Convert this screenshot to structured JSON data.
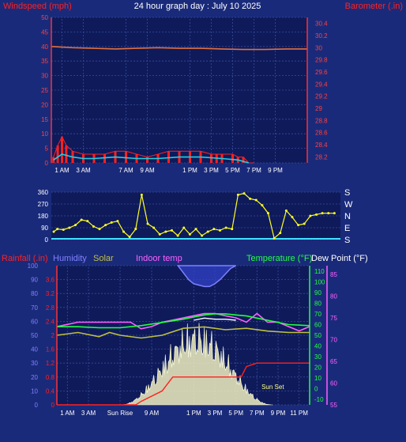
{
  "header": {
    "left_label": "Windspeed (mph)",
    "title": "24 hour graph day : July 10 2025",
    "right_label": "Barometer (.in)"
  },
  "colors": {
    "background": "#1a2a7a",
    "plot_bg": "#0e1a5a",
    "windspeed": "#ff2020",
    "windspeed_avg": "#20d0e0",
    "barometer": "#e07040",
    "direction": "#ffff20",
    "rainfall": "#ff2020",
    "humidity": "#8080ff",
    "solar": "#c0c040",
    "indoor_temp": "#ff60ff",
    "temperature": "#20ff40",
    "dew_point": "#ffffff"
  },
  "chart_data": [
    {
      "type": "line",
      "title": "24 hour graph day : July 10 2025",
      "ylabel": "Windspeed (mph)",
      "y2label": "Barometer (.in)",
      "ylim": [
        0,
        50
      ],
      "y2lim": [
        28.1,
        30.5
      ],
      "yticks": [
        0,
        5,
        10,
        15,
        20,
        25,
        30,
        35,
        40,
        45,
        50
      ],
      "y2ticks": [
        28.2,
        28.4,
        28.6,
        28.8,
        29,
        29.2,
        29.4,
        29.6,
        29.8,
        30,
        30.2,
        30.4
      ],
      "x_ticks": [
        "1 AM",
        "3 AM",
        "7 AM",
        "9 AM",
        "1 PM",
        "3 PM",
        "5 PM",
        "7 PM",
        "9 PM"
      ],
      "x_tick_hours": [
        1,
        3,
        7,
        9,
        13,
        15,
        17,
        19,
        21
      ],
      "xlim_hours": [
        0,
        24
      ],
      "series": [
        {
          "name": "Windspeed (mph)",
          "hours": [
            0.2,
            0.6,
            1.0,
            1.4,
            2.0,
            3.0,
            4.0,
            5.0,
            6.0,
            7.0,
            8.0,
            9.0,
            10.0,
            11.0,
            12.0,
            13.0,
            14.0,
            15.0,
            15.5,
            16.0,
            17.0,
            17.5,
            18.0,
            18.5,
            19.0
          ],
          "values": [
            2,
            6,
            9,
            6,
            4,
            3,
            3,
            3,
            4,
            4,
            3,
            2,
            3,
            4,
            4,
            4,
            4,
            3,
            3,
            3,
            3,
            2,
            2,
            0,
            0
          ]
        },
        {
          "name": "Wind average",
          "hours": [
            0.2,
            1.0,
            2.0,
            3.0,
            4.0,
            6.0,
            8.0,
            10.0,
            12.0,
            14.0,
            16.0,
            17.5,
            18.5
          ],
          "values": [
            1,
            3,
            2,
            1.5,
            1.5,
            2,
            1.5,
            1.5,
            2,
            2,
            1.5,
            1,
            0
          ]
        },
        {
          "name": "Barometer (.in)",
          "hours": [
            0,
            2,
            4,
            6,
            8,
            10,
            12,
            14,
            16,
            18,
            20,
            22,
            24
          ],
          "values": [
            30.02,
            30.0,
            29.99,
            29.98,
            29.99,
            30.0,
            29.99,
            29.99,
            29.98,
            29.97,
            29.97,
            29.98,
            29.98
          ]
        }
      ]
    },
    {
      "type": "scatter",
      "ylabel": "Wind direction",
      "ylim": [
        0,
        360
      ],
      "yticks": [
        0,
        90,
        180,
        270,
        360
      ],
      "direction_labels": [
        "S",
        "E",
        "N",
        "W",
        "S"
      ],
      "xlim_hours": [
        0,
        24
      ],
      "series": [
        {
          "name": "Wind direction",
          "hours": [
            0.2,
            0.5,
            1.0,
            1.5,
            2.0,
            2.5,
            3.0,
            3.5,
            4.0,
            4.5,
            5.0,
            5.5,
            6.0,
            6.5,
            7.0,
            7.5,
            8.0,
            8.5,
            9.0,
            9.5,
            10.0,
            10.5,
            11.0,
            11.5,
            12.0,
            12.5,
            13.0,
            13.5,
            14.0,
            14.5,
            15.0,
            15.5,
            16.0,
            16.5,
            17.0,
            17.5,
            18.0,
            18.5,
            19.0,
            19.5,
            20.0,
            20.5,
            21.0,
            21.5,
            22.0,
            22.5,
            23.0,
            23.5
          ],
          "values": [
            60,
            80,
            75,
            90,
            110,
            150,
            140,
            100,
            80,
            110,
            130,
            140,
            60,
            20,
            80,
            340,
            120,
            90,
            40,
            60,
            70,
            30,
            90,
            40,
            80,
            30,
            60,
            80,
            70,
            90,
            80,
            340,
            350,
            310,
            300,
            260,
            200,
            10,
            50,
            220,
            170,
            110,
            120,
            180,
            190,
            200,
            200,
            200
          ]
        }
      ]
    },
    {
      "type": "line",
      "ylabels_left": [
        "Rainfall (.in)",
        "Humidity",
        "Solar",
        "Indoor temp"
      ],
      "ylabels_right": [
        "Temperature (°F)",
        "Dew Point (°F)"
      ],
      "rain_ylim": [
        0,
        4
      ],
      "rain_ticks": [
        0,
        0.4,
        0.8,
        1.2,
        1.6,
        2,
        2.4,
        2.8,
        3.2,
        3.6
      ],
      "hum_ylim": [
        0,
        100
      ],
      "hum_ticks": [
        0,
        10,
        20,
        30,
        40,
        50,
        60,
        70,
        80,
        90,
        100
      ],
      "temp_ylim": [
        -15,
        115
      ],
      "temp_ticks": [
        -10,
        0,
        10,
        20,
        30,
        40,
        50,
        60,
        70,
        80,
        90,
        100,
        110
      ],
      "indoor_ylim": [
        55,
        87
      ],
      "indoor_ticks": [
        55,
        60,
        65,
        70,
        75,
        80,
        85
      ],
      "x_ticks": [
        "1 AM",
        "3 AM",
        "Sun Rise",
        "9 AM",
        "1 PM",
        "3 PM",
        "5 PM",
        "7 PM",
        "9 PM",
        "11 PM"
      ],
      "x_tick_hours": [
        1,
        3,
        6,
        9,
        13,
        15,
        17,
        19,
        21,
        23
      ],
      "annotations": [
        {
          "text": "Sun Set",
          "hour": 20.5
        }
      ],
      "xlim_hours": [
        0,
        24
      ],
      "series": [
        {
          "name": "Humidity",
          "hours": [
            11.5,
            12,
            12.5,
            13,
            13.5,
            14,
            14.5,
            15,
            15.5,
            16,
            16.5,
            17
          ],
          "values": [
            100,
            95,
            90,
            87,
            86,
            85,
            85,
            87,
            90,
            94,
            98,
            100
          ]
        },
        {
          "name": "Solar",
          "hours": [
            0,
            2,
            4,
            5,
            6,
            8,
            10,
            12,
            14,
            16,
            18,
            20,
            22,
            24
          ],
          "values": [
            50,
            52,
            49,
            52,
            50,
            48,
            50,
            55,
            56,
            54,
            55,
            53,
            52,
            52
          ]
        },
        {
          "name": "Indoor temp",
          "hours": [
            0,
            1,
            2,
            3,
            4,
            5,
            6,
            7,
            8,
            9,
            10,
            11,
            12,
            13,
            14,
            15,
            16,
            17,
            18,
            19,
            20,
            21,
            22,
            23,
            24
          ],
          "values": [
            73,
            73.5,
            74,
            74,
            74,
            74,
            74,
            74,
            72.5,
            73,
            74,
            74.5,
            75,
            75.5,
            76,
            76,
            75.5,
            75,
            74,
            76,
            74,
            74,
            73,
            72,
            73
          ]
        },
        {
          "name": "Temperature (°F)",
          "hours": [
            0,
            2,
            4,
            6,
            8,
            10,
            12,
            13,
            14,
            15,
            16,
            17,
            18,
            19,
            20,
            22,
            24
          ],
          "values": [
            58,
            58,
            57,
            57,
            59,
            62,
            65,
            67,
            69,
            70,
            70,
            69,
            68,
            66,
            64,
            60,
            59
          ]
        },
        {
          "name": "Dew Point (°F)",
          "hours": [
            13,
            14,
            15,
            16,
            17
          ],
          "values": [
            64,
            66,
            65,
            65,
            64
          ]
        },
        {
          "name": "Rainfall (.in)",
          "hours": [
            0,
            7.5,
            8,
            10,
            11,
            17.5,
            18,
            19,
            20.5,
            24
          ],
          "values": [
            0,
            0,
            0.1,
            0.4,
            0.8,
            0.8,
            1.1,
            1.2,
            1.2,
            1.2
          ]
        }
      ]
    }
  ]
}
